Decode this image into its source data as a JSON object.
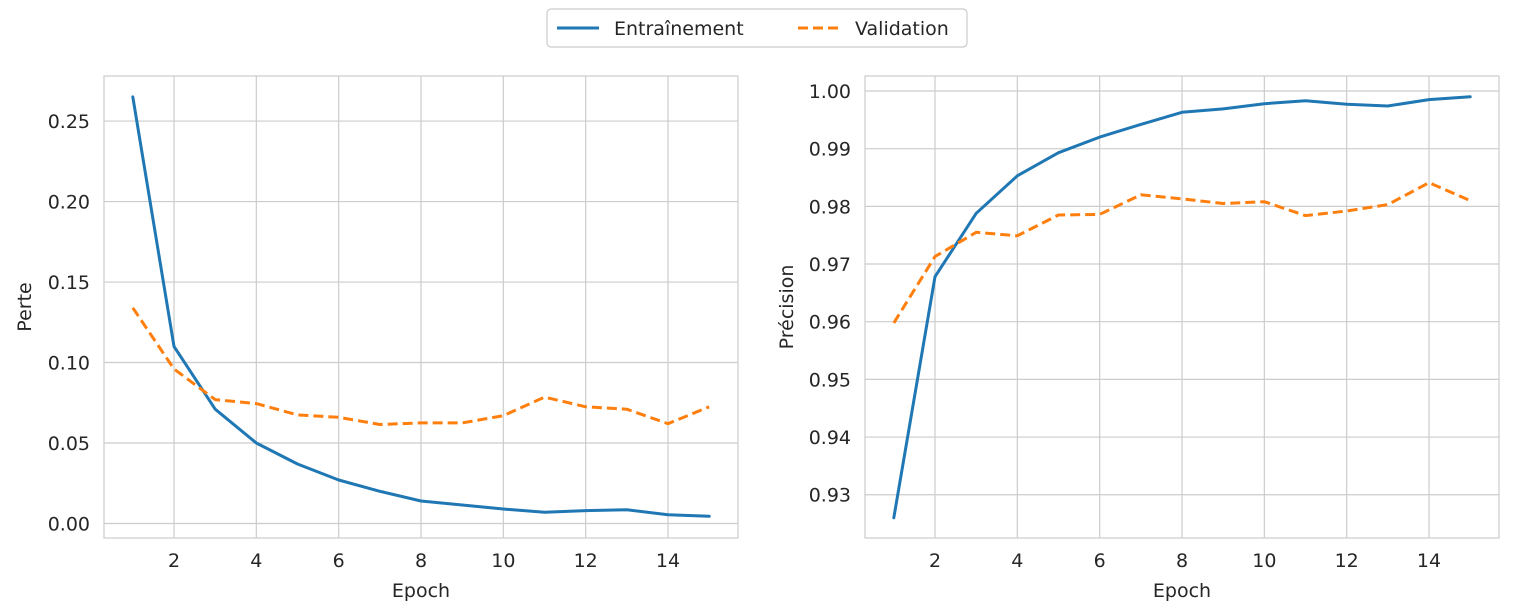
{
  "legend": {
    "entries": [
      {
        "label": "Entraînement",
        "color": "#1f77b4",
        "style": "solid"
      },
      {
        "label": "Validation",
        "color": "#ff7f0e",
        "style": "dashed"
      }
    ],
    "placement": "top-center"
  },
  "chart_data": [
    {
      "type": "line",
      "xlabel": "Epoch",
      "ylabel": "Perte",
      "grid": true,
      "xlim": [
        0.3,
        15.7
      ],
      "ylim": [
        -0.009,
        0.278
      ],
      "xticks": [
        2,
        4,
        6,
        8,
        10,
        12,
        14
      ],
      "yticks": [
        0.0,
        0.05,
        0.1,
        0.15,
        0.2,
        0.25
      ],
      "ytick_labels": [
        "0.00",
        "0.05",
        "0.10",
        "0.15",
        "0.20",
        "0.25"
      ],
      "x": [
        1,
        2,
        3,
        4,
        5,
        6,
        7,
        8,
        9,
        10,
        11,
        12,
        13,
        14,
        15
      ],
      "series": [
        {
          "name": "Entraînement",
          "color": "#1f77b4",
          "style": "solid",
          "values": [
            0.265,
            0.11,
            0.071,
            0.05,
            0.037,
            0.027,
            0.02,
            0.014,
            0.0115,
            0.009,
            0.007,
            0.008,
            0.0085,
            0.0055,
            0.0045
          ]
        },
        {
          "name": "Validation",
          "color": "#ff7f0e",
          "style": "dashed",
          "values": [
            0.134,
            0.096,
            0.077,
            0.0745,
            0.0675,
            0.066,
            0.0615,
            0.0625,
            0.0625,
            0.067,
            0.0785,
            0.0725,
            0.071,
            0.062,
            0.0725
          ]
        }
      ]
    },
    {
      "type": "line",
      "xlabel": "Epoch",
      "ylabel": "Précision",
      "grid": true,
      "xlim": [
        0.3,
        15.7
      ],
      "ylim": [
        0.9225,
        1.0026
      ],
      "xticks": [
        2,
        4,
        6,
        8,
        10,
        12,
        14
      ],
      "yticks": [
        0.93,
        0.94,
        0.95,
        0.96,
        0.97,
        0.98,
        0.99,
        1.0
      ],
      "ytick_labels": [
        "0.93",
        "0.94",
        "0.95",
        "0.96",
        "0.97",
        "0.98",
        "0.99",
        "1.00"
      ],
      "x": [
        1,
        2,
        3,
        4,
        5,
        6,
        7,
        8,
        9,
        10,
        11,
        12,
        13,
        14,
        15
      ],
      "series": [
        {
          "name": "Entraînement",
          "color": "#1f77b4",
          "style": "solid",
          "values": [
            0.926,
            0.9678,
            0.9788,
            0.9853,
            0.9893,
            0.992,
            0.9942,
            0.9963,
            0.9969,
            0.9978,
            0.9983,
            0.9977,
            0.9974,
            0.9985,
            0.999
          ]
        },
        {
          "name": "Validation",
          "color": "#ff7f0e",
          "style": "dashed",
          "values": [
            0.9598,
            0.9713,
            0.9755,
            0.9749,
            0.9785,
            0.9786,
            0.982,
            0.9813,
            0.9805,
            0.9808,
            0.9784,
            0.9792,
            0.9803,
            0.9841,
            0.981
          ]
        }
      ]
    }
  ]
}
